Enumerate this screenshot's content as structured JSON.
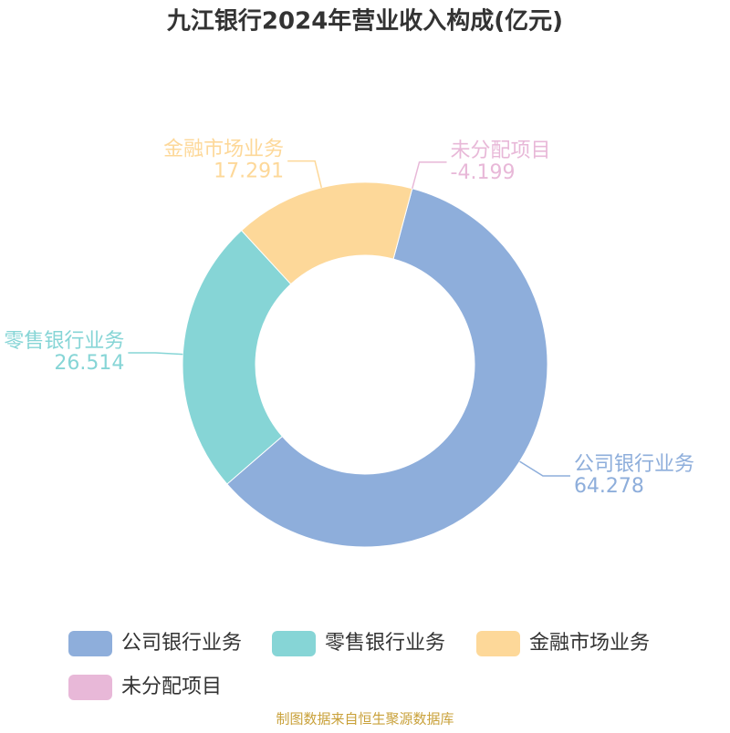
{
  "chart_data": {
    "type": "pie",
    "title": "九江银行2024年营业收入构成(亿元)",
    "categories": [
      "公司银行业务",
      "零售银行业务",
      "金融市场业务",
      "未分配项目"
    ],
    "values": [
      64.278,
      26.514,
      17.291,
      -4.199
    ],
    "colors": [
      "#8eaedb",
      "#86d5d6",
      "#fdd899",
      "#e8b8d8"
    ],
    "donut": true,
    "legend": "bottom",
    "source": "制图数据来自恒生聚源数据库"
  }
}
